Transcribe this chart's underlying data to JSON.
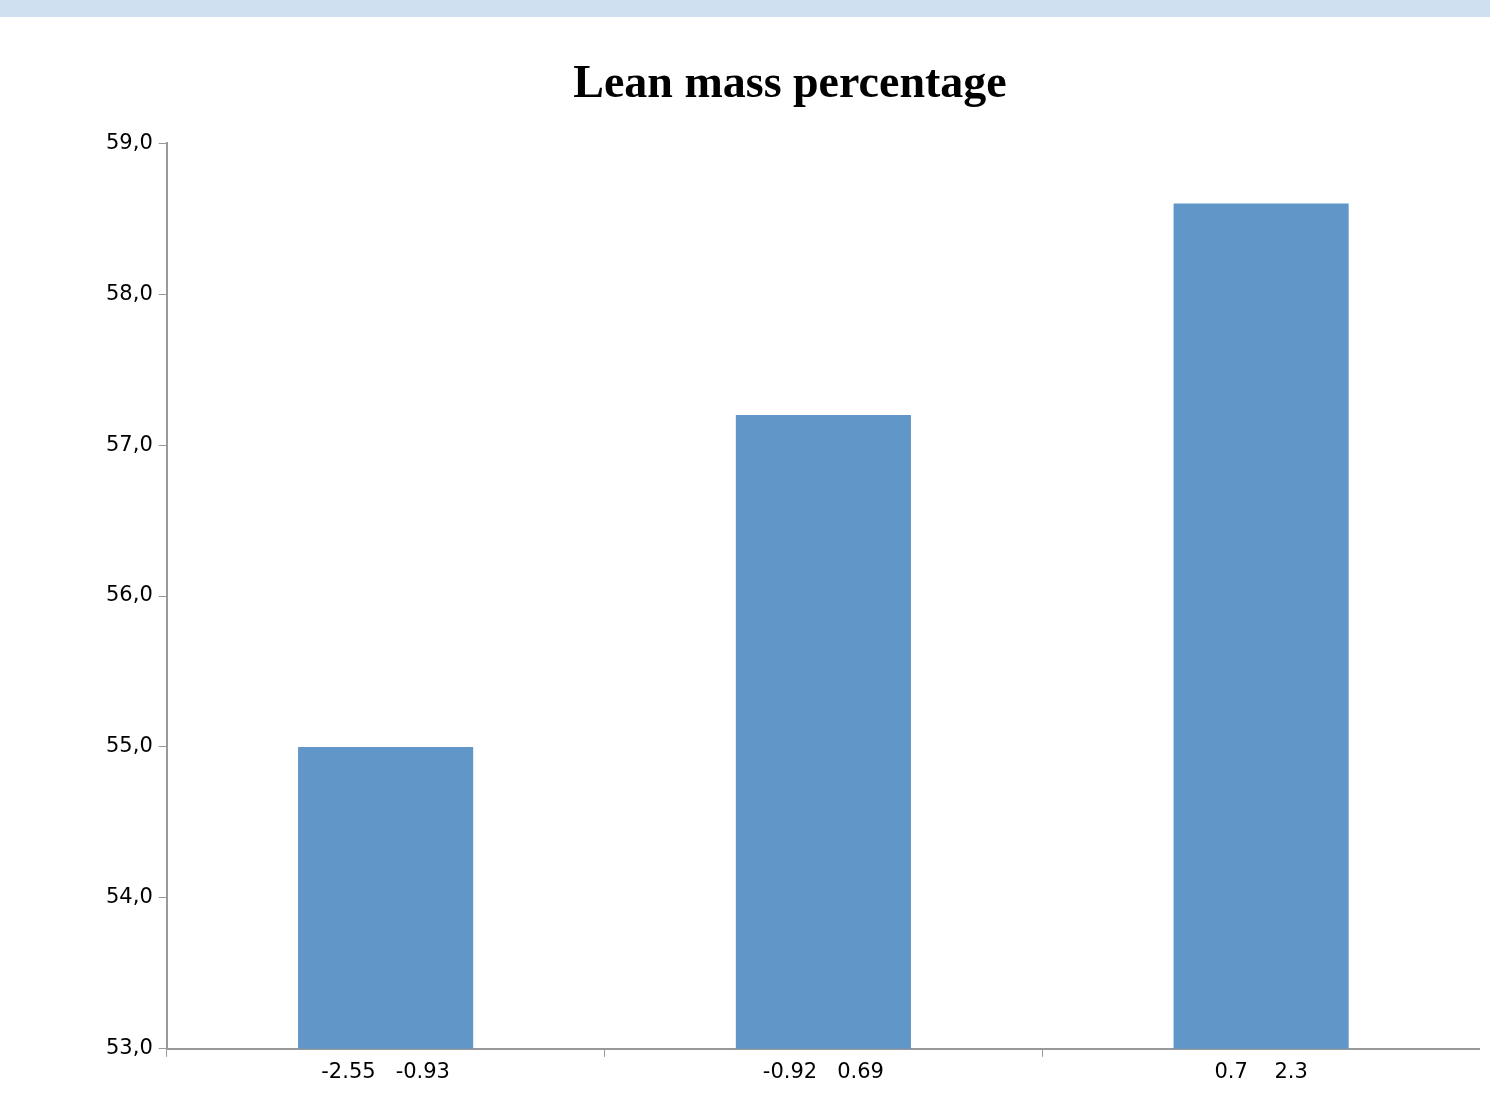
{
  "chart_data": {
    "type": "bar",
    "title": "Lean mass percentage",
    "categories": [
      "-2.55   -0.93",
      "-0.92   0.69",
      "0.7    2.3"
    ],
    "values": [
      55.0,
      57.2,
      58.6
    ],
    "color": "#6096c8",
    "ylim": [
      53,
      59
    ],
    "yticks": [
      {
        "value": 53,
        "label": "53,0"
      },
      {
        "value": 54,
        "label": "54,0"
      },
      {
        "value": 55,
        "label": "55,0"
      },
      {
        "value": 56,
        "label": "56,0"
      },
      {
        "value": 57,
        "label": "57,0"
      },
      {
        "value": 58,
        "label": "58,0"
      },
      {
        "value": 59,
        "label": "59,0"
      }
    ],
    "grid": false,
    "legend": false
  }
}
